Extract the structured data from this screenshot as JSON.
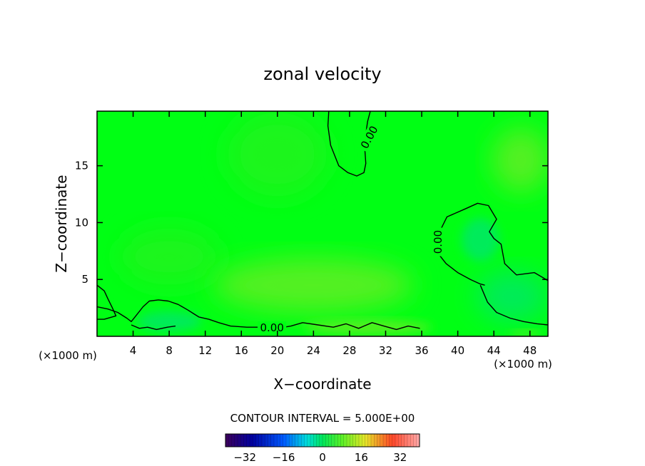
{
  "chart_data": {
    "type": "heatmap",
    "title": "zonal velocity",
    "xlabel": "X−coordinate",
    "ylabel": "Z−coordinate",
    "x_unit_left": "(×1000 m)",
    "x_unit_right": "(×1000 m)",
    "xlim": [
      0,
      50
    ],
    "ylim": [
      0,
      19.8
    ],
    "x_ticks": [
      4,
      8,
      12,
      16,
      20,
      24,
      28,
      32,
      36,
      40,
      44,
      48
    ],
    "y_ticks": [
      5,
      10,
      15
    ],
    "contour_interval_text": "CONTOUR INTERVAL = 5.000E+00",
    "contour_label": "0.00",
    "colorbar": {
      "min": -40,
      "max": 40,
      "ticks": [
        -32,
        -16,
        0,
        16,
        32
      ],
      "tick_labels": [
        "−32",
        "−16",
        "0",
        "16",
        "32"
      ]
    },
    "field_colors": {
      "background": "#00ff14",
      "light_patch": "#1cf51e",
      "yellow_patch": "#55f020",
      "blue_patch": "#00eb5a"
    },
    "zero_contours": [
      {
        "x": [
          25.7,
          25.6,
          25.9,
          26.8,
          27.8,
          28.8,
          29.6,
          29.8,
          29.7,
          29.8,
          30.0,
          30.3
        ],
        "y": [
          19.8,
          18.5,
          16.8,
          15.0,
          14.4,
          14.1,
          14.4,
          15.2,
          16.4,
          17.8,
          18.9,
          19.8
        ]
      },
      {
        "x": [
          50.0,
          48.5,
          46.5,
          45.2,
          44.8,
          44.0,
          43.5,
          44.3,
          43.4,
          42.2,
          40.8,
          38.8,
          37.8,
          37.9,
          38.7,
          40.0,
          41.4,
          42.5,
          43.0
        ],
        "y": [
          4.9,
          5.6,
          5.4,
          6.4,
          8.1,
          8.6,
          9.2,
          10.3,
          11.5,
          11.7,
          11.2,
          10.5,
          8.9,
          7.2,
          6.4,
          5.6,
          5.0,
          4.6,
          4.5
        ]
      },
      {
        "x": [
          42.5,
          43.3,
          44.3,
          45.8,
          47.3,
          48.8,
          50.0
        ],
        "y": [
          4.5,
          3.0,
          2.1,
          1.6,
          1.3,
          1.1,
          1.0
        ]
      },
      {
        "x": [
          0.0,
          0.8,
          1.2,
          1.7,
          2.1,
          0.8,
          0.0
        ],
        "y": [
          4.5,
          4.0,
          3.3,
          2.5,
          1.8,
          1.5,
          1.5
        ]
      },
      {
        "x": [
          0.0,
          1.2,
          2.3,
          3.3,
          3.8,
          4.3,
          5.1,
          5.8,
          6.8,
          7.9,
          9.0,
          10.1,
          10.7,
          11.3,
          12.4,
          13.5,
          14.8,
          16.6,
          17.8
        ],
        "y": [
          2.6,
          2.4,
          2.1,
          1.6,
          1.3,
          1.8,
          2.6,
          3.1,
          3.2,
          3.1,
          2.8,
          2.3,
          2.0,
          1.7,
          1.5,
          1.2,
          0.9,
          0.8,
          0.8
        ]
      },
      {
        "x": [
          20.0,
          21.5,
          22.8,
          24.5,
          26.2,
          27.6,
          29.0,
          30.5,
          31.8,
          33.2,
          34.5,
          35.8
        ],
        "y": [
          0.7,
          0.9,
          1.2,
          1.0,
          0.8,
          1.1,
          0.7,
          1.2,
          0.9,
          0.6,
          0.9,
          0.7
        ]
      },
      {
        "x": [
          3.8,
          4.7,
          5.6,
          6.6,
          7.8,
          8.7
        ],
        "y": [
          1.0,
          0.7,
          0.8,
          0.6,
          0.8,
          0.9
        ]
      }
    ]
  }
}
